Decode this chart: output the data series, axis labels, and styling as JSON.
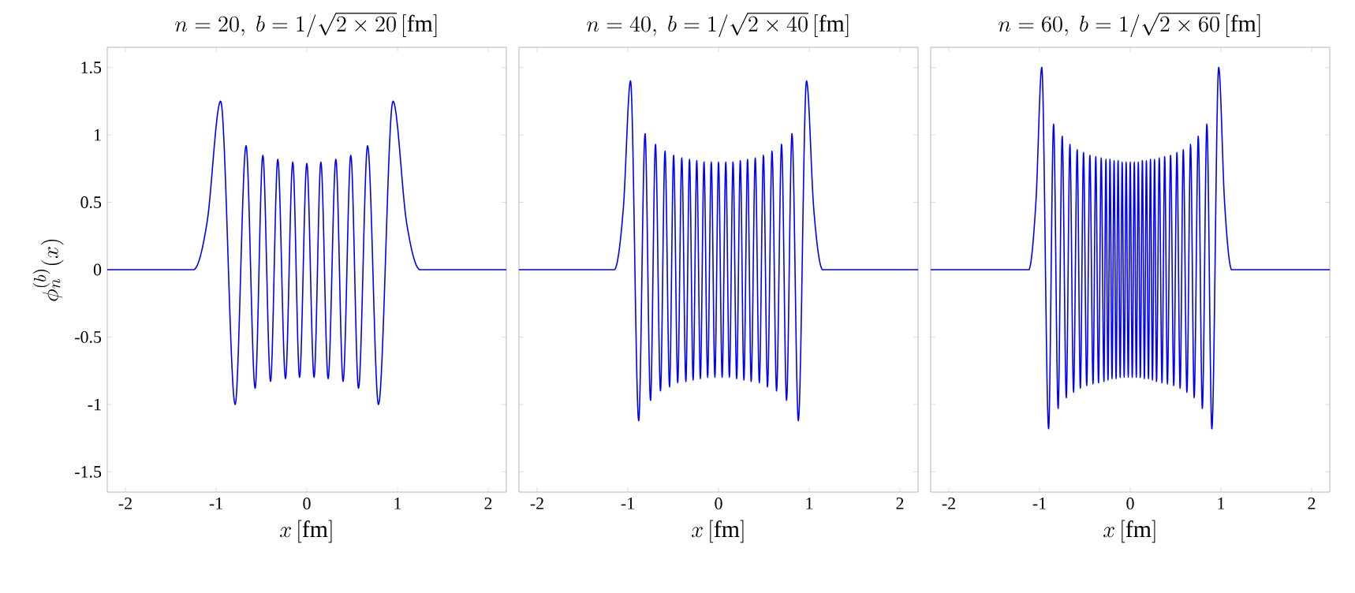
{
  "chart_data": [
    {
      "type": "line",
      "title": "n = 20,\\ b = 1/\\sqrt{2\\times 20}\\,[\\mathrm{fm}]",
      "xlabel": "x\\,[\\mathrm{fm}]",
      "ylabel": "\\phi_n^{(b)}(x)",
      "xlim": [
        -2.2,
        2.2
      ],
      "ylim": [
        -1.65,
        1.65
      ],
      "xticks": [
        -2,
        -1,
        0,
        1,
        2
      ],
      "yticks": [
        -1.5,
        -1,
        -0.5,
        0,
        0.5,
        1,
        1.5
      ],
      "x": [
        -2.2,
        -1.25,
        -1.1,
        -0.95,
        -0.79,
        -0.67,
        -0.57,
        -0.485,
        -0.4,
        -0.32,
        -0.235,
        -0.155,
        -0.08,
        0,
        0.08,
        0.155,
        0.235,
        0.32,
        0.4,
        0.485,
        0.57,
        0.67,
        0.79,
        0.95,
        1.1,
        1.25,
        2.2
      ],
      "series": [
        {
          "color": "#0000ff",
          "values": [
            0,
            0,
            0.35,
            1.25,
            -1.0,
            0.92,
            -0.88,
            0.85,
            -0.83,
            0.82,
            -0.81,
            0.8,
            -0.8,
            0.79,
            -0.8,
            0.8,
            -0.81,
            0.82,
            -0.83,
            0.85,
            -0.88,
            0.92,
            -1.0,
            1.25,
            0.35,
            0,
            0
          ]
        }
      ]
    },
    {
      "type": "line",
      "title": "n = 40,\\ b = 1/\\sqrt{2\\times 40}\\,[\\mathrm{fm}]",
      "xlabel": "x\\,[\\mathrm{fm}]",
      "tick_labels": "x",
      "xlim": [
        -2.2,
        2.2
      ],
      "ylim": [
        -1.65,
        1.65
      ],
      "xticks": [
        -2,
        -1,
        0,
        1,
        2
      ],
      "yticks": [
        -1.5,
        -1,
        -0.5,
        0,
        0.5,
        1,
        1.5
      ],
      "x": [
        -2.2,
        -1.15,
        -1.05,
        -0.97,
        -0.88,
        -0.81,
        -0.75,
        -0.695,
        -0.64,
        -0.59,
        -0.54,
        -0.495,
        -0.45,
        -0.405,
        -0.36,
        -0.32,
        -0.28,
        -0.24,
        -0.2,
        -0.16,
        -0.12,
        -0.08,
        -0.04,
        0,
        0.04,
        0.08,
        0.12,
        0.16,
        0.2,
        0.24,
        0.28,
        0.32,
        0.36,
        0.405,
        0.45,
        0.495,
        0.54,
        0.59,
        0.64,
        0.695,
        0.75,
        0.81,
        0.88,
        0.97,
        1.05,
        1.15,
        2.2
      ],
      "series": [
        {
          "color": "#0000ff",
          "values": [
            0,
            0,
            0.45,
            1.4,
            -1.12,
            1.01,
            -0.97,
            0.93,
            -0.9,
            0.88,
            -0.87,
            0.85,
            -0.84,
            0.83,
            -0.83,
            0.82,
            -0.82,
            0.81,
            -0.81,
            0.8,
            -0.8,
            0.8,
            -0.8,
            0.8,
            -0.8,
            0.8,
            -0.8,
            0.8,
            -0.81,
            0.81,
            -0.82,
            0.82,
            -0.83,
            0.83,
            -0.84,
            0.85,
            -0.87,
            0.88,
            -0.9,
            0.93,
            -0.97,
            1.01,
            -1.12,
            1.4,
            0.45,
            0,
            0
          ]
        }
      ]
    },
    {
      "type": "line",
      "title": "n = 60,\\ b = 1/\\sqrt{2\\times 60}\\,[\\mathrm{fm}]",
      "xlabel": "x\\,[\\mathrm{fm}]",
      "tick_labels": "x",
      "xlim": [
        -2.2,
        2.2
      ],
      "ylim": [
        -1.65,
        1.65
      ],
      "xticks": [
        -2,
        -1,
        0,
        1,
        2
      ],
      "yticks": [
        -1.5,
        -1,
        -0.5,
        0,
        0.5,
        1,
        1.5
      ],
      "x": [
        -2.2,
        -1.12,
        -1.04,
        -0.975,
        -0.9,
        -0.845,
        -0.795,
        -0.75,
        -0.705,
        -0.665,
        -0.625,
        -0.585,
        -0.55,
        -0.515,
        -0.48,
        -0.445,
        -0.41,
        -0.38,
        -0.35,
        -0.32,
        -0.29,
        -0.268,
        -0.245,
        -0.223,
        -0.201,
        -0.178,
        -0.156,
        -0.134,
        -0.111,
        -0.089,
        -0.067,
        -0.045,
        -0.022,
        0,
        0.022,
        0.045,
        0.067,
        0.089,
        0.111,
        0.134,
        0.156,
        0.178,
        0.201,
        0.223,
        0.245,
        0.268,
        0.29,
        0.32,
        0.35,
        0.38,
        0.41,
        0.445,
        0.48,
        0.515,
        0.55,
        0.585,
        0.625,
        0.665,
        0.705,
        0.75,
        0.795,
        0.845,
        0.9,
        0.975,
        1.04,
        1.12,
        2.2
      ],
      "series": [
        {
          "color": "#0000ff",
          "values": [
            0,
            0,
            0.5,
            1.5,
            -1.18,
            1.08,
            -1.03,
            0.99,
            -0.95,
            0.93,
            -0.91,
            0.89,
            -0.88,
            0.87,
            -0.86,
            0.85,
            -0.85,
            0.84,
            -0.84,
            0.83,
            -0.83,
            0.82,
            -0.82,
            0.82,
            -0.81,
            0.81,
            -0.81,
            0.81,
            -0.8,
            0.8,
            -0.8,
            0.8,
            -0.8,
            0.8,
            -0.8,
            0.8,
            -0.8,
            0.8,
            -0.8,
            0.81,
            -0.81,
            0.81,
            -0.81,
            0.82,
            -0.82,
            0.82,
            -0.83,
            0.83,
            -0.84,
            0.84,
            -0.85,
            0.85,
            -0.86,
            0.87,
            -0.88,
            0.89,
            -0.91,
            0.93,
            -0.95,
            0.99,
            -1.03,
            1.08,
            -1.18,
            1.5,
            0.5,
            0,
            0
          ]
        }
      ]
    }
  ]
}
